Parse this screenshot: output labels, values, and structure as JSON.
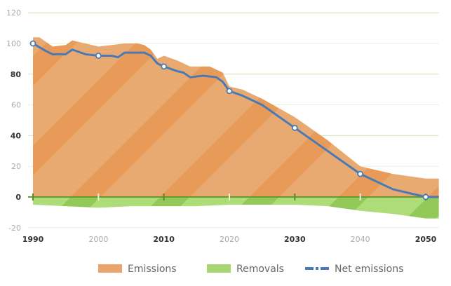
{
  "chart_data": {
    "type": "area",
    "title": "",
    "xlabel": "",
    "ylabel": "",
    "xlim": [
      1990,
      2052
    ],
    "ylim": [
      -20,
      120
    ],
    "yticks": [
      {
        "value": -20,
        "label": "-20",
        "bold": false
      },
      {
        "value": 0,
        "label": "0",
        "bold": true
      },
      {
        "value": 20,
        "label": "20",
        "bold": false
      },
      {
        "value": 40,
        "label": "40",
        "bold": true
      },
      {
        "value": 60,
        "label": "60",
        "bold": false
      },
      {
        "value": 80,
        "label": "80",
        "bold": true
      },
      {
        "value": 100,
        "label": "100",
        "bold": false
      },
      {
        "value": 120,
        "label": "120",
        "bold": false
      }
    ],
    "xticks": [
      {
        "value": 1990,
        "label": "1990",
        "bold": true
      },
      {
        "value": 2000,
        "label": "2000",
        "bold": false
      },
      {
        "value": 2010,
        "label": "2010",
        "bold": true
      },
      {
        "value": 2020,
        "label": "2020",
        "bold": false
      },
      {
        "value": 2030,
        "label": "2030",
        "bold": true
      },
      {
        "value": 2040,
        "label": "2040",
        "bold": false
      },
      {
        "value": 2050,
        "label": "2050",
        "bold": true
      }
    ],
    "grid": true,
    "legend_position": "bottom",
    "series": [
      {
        "name": "Emissions",
        "type": "area",
        "color": "#e9a56b",
        "x": [
          1990,
          1991,
          1993,
          1995,
          1996,
          1998,
          2000,
          2002,
          2004,
          2006,
          2007,
          2008,
          2009,
          2010,
          2012,
          2014,
          2017,
          2019,
          2020,
          2022,
          2025,
          2030,
          2035,
          2040,
          2045,
          2050,
          2052
        ],
        "y": [
          104,
          104,
          98,
          99,
          102,
          100,
          98,
          99,
          100,
          100,
          99,
          96,
          90,
          92,
          89,
          85,
          85,
          81,
          72,
          70,
          64,
          52,
          37,
          20,
          15,
          12,
          12
        ]
      },
      {
        "name": "Removals",
        "type": "area",
        "color": "#a8d672",
        "x": [
          1990,
          1995,
          2000,
          2005,
          2010,
          2015,
          2020,
          2025,
          2030,
          2035,
          2040,
          2045,
          2050,
          2052
        ],
        "y": [
          -5,
          -6,
          -7,
          -6,
          -6,
          -6,
          -5,
          -5,
          -5,
          -6,
          -9,
          -11,
          -14,
          -14
        ]
      },
      {
        "name": "Net emissions",
        "type": "line",
        "color": "#4a7ab5",
        "x": [
          1990,
          1992,
          1993,
          1995,
          1996,
          1998,
          2000,
          2002,
          2003,
          2004,
          2007,
          2008,
          2009,
          2010,
          2012,
          2013,
          2014,
          2016,
          2018,
          2019,
          2020,
          2022,
          2025,
          2030,
          2035,
          2040,
          2045,
          2048,
          2050,
          2052
        ],
        "y": [
          100,
          95,
          93,
          93,
          96,
          93,
          92,
          92,
          91,
          94,
          94,
          92,
          87,
          85,
          82,
          81,
          78,
          79,
          78,
          75,
          69,
          66,
          60,
          45,
          30,
          15,
          5,
          2,
          0,
          0
        ],
        "markers": [
          [
            1990,
            100
          ],
          [
            2000,
            92
          ],
          [
            2010,
            85
          ],
          [
            2020,
            69
          ],
          [
            2030,
            45
          ],
          [
            2040,
            15
          ],
          [
            2050,
            0
          ]
        ]
      }
    ]
  }
}
